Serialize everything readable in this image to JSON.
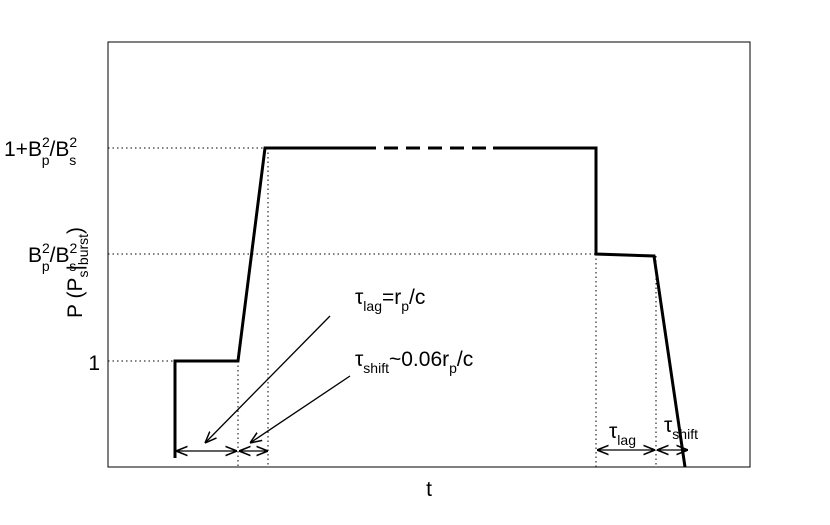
{
  "y_axis": {
    "label": [
      "P (P",
      "s",
      "|",
      "burst",
      ")"
    ],
    "ticks": [
      {
        "label": [
          "1"
        ]
      },
      {
        "label": [
          "B",
          "2",
          "p",
          "/B",
          "2",
          "s"
        ]
      },
      {
        "label": [
          "1+B",
          "2",
          "p",
          "/B",
          "2",
          "s"
        ]
      }
    ]
  },
  "x_axis": {
    "label": "t"
  },
  "annotations": {
    "tau_lag": [
      "τ",
      "lag",
      "=r",
      "p",
      "/c"
    ],
    "tau_shift": [
      "τ",
      "shift",
      "~0.06r",
      "p",
      "/c"
    ],
    "tau_lag_right": [
      "τ",
      "lag"
    ],
    "tau_shift_right": [
      "τ",
      "shift"
    ]
  }
}
